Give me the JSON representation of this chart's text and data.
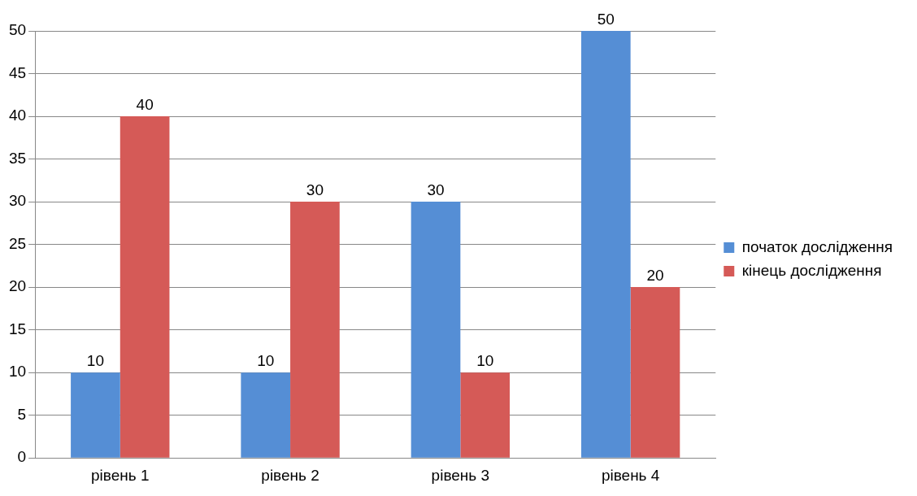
{
  "chart_data": {
    "type": "bar",
    "categories": [
      "рівень 1",
      "рівень 2",
      "рівень 3",
      "рівень 4"
    ],
    "series": [
      {
        "name": "початок дослідження",
        "color": "#558ed5",
        "values": [
          10,
          10,
          30,
          50
        ]
      },
      {
        "name": "кінець дослідження",
        "color": "#d55a57",
        "values": [
          40,
          30,
          10,
          20
        ]
      }
    ],
    "ylim": [
      0,
      50
    ],
    "yticks": [
      0,
      5,
      10,
      15,
      20,
      25,
      30,
      35,
      40,
      45,
      50
    ],
    "grid": "y",
    "legend": "right",
    "data_labels": true
  }
}
